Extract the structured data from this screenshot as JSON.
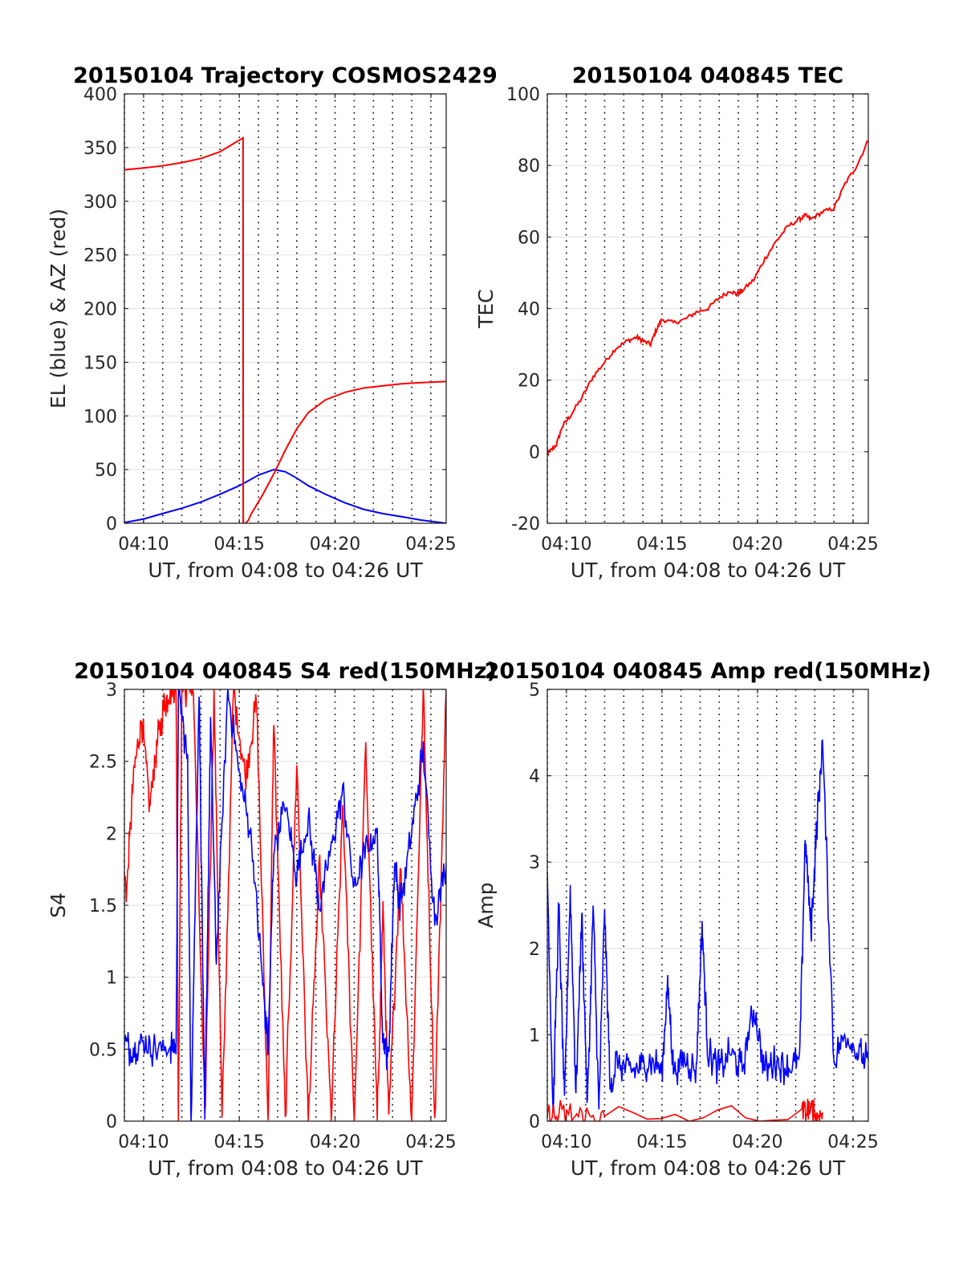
{
  "figure": {
    "background": "#ffffff"
  },
  "chart_data": [
    {
      "type": "line",
      "title": "20150104 Trajectory COSMOS2429",
      "xlabel": "UT, from 04:08 to 04:26 UT",
      "ylabel": "EL (blue) & AZ (red)",
      "xlim": [
        4.15,
        4.43
      ],
      "ylim": [
        0,
        400
      ],
      "x_ticks": [
        {
          "v": 4.1667,
          "label": "04:10"
        },
        {
          "v": 4.25,
          "label": "04:15"
        },
        {
          "v": 4.3333,
          "label": "04:20"
        },
        {
          "v": 4.4167,
          "label": "04:25"
        }
      ],
      "y_ticks": [
        {
          "v": 0,
          "label": "0"
        },
        {
          "v": 50,
          "label": "50"
        },
        {
          "v": 100,
          "label": "100"
        },
        {
          "v": 150,
          "label": "150"
        },
        {
          "v": 200,
          "label": "200"
        },
        {
          "v": 250,
          "label": "250"
        },
        {
          "v": 300,
          "label": "300"
        },
        {
          "v": 350,
          "label": "350"
        },
        {
          "v": 400,
          "label": "400"
        }
      ],
      "grid": "y-solid, x-dotted every minute",
      "series": [
        {
          "color": "#0000ff",
          "x": [
            4.1467,
            4.167,
            4.183,
            4.2,
            4.217,
            4.233,
            4.25,
            4.267,
            4.28,
            4.29,
            4.3,
            4.31,
            4.325,
            4.342,
            4.358,
            4.375,
            4.392,
            4.408,
            4.43
          ],
          "y": [
            0,
            4,
            9,
            14,
            20,
            27,
            35,
            45,
            50,
            48,
            42,
            35,
            27,
            19,
            13,
            9,
            6,
            3,
            0
          ]
        },
        {
          "color": "#ff0000",
          "x": [
            4.1467,
            4.167,
            4.183,
            4.2,
            4.217,
            4.233,
            4.2533,
            4.2534,
            4.2556,
            4.258,
            4.26,
            4.27,
            4.28,
            4.29,
            4.3,
            4.31,
            4.325,
            4.342,
            4.358,
            4.375,
            4.392,
            4.408,
            4.43
          ],
          "y": [
            329,
            331,
            333,
            336,
            340,
            346,
            359,
            0,
            0,
            3,
            8,
            26,
            46,
            68,
            88,
            103,
            115,
            122,
            126,
            128,
            130,
            131,
            132
          ]
        }
      ]
    },
    {
      "type": "line",
      "title": "20150104 040845 TEC",
      "xlabel": "UT, from 04:08 to 04:26 UT",
      "ylabel": "TEC",
      "xlim": [
        4.15,
        4.43
      ],
      "ylim": [
        -20,
        100
      ],
      "x_ticks": [
        {
          "v": 4.1667,
          "label": "04:10"
        },
        {
          "v": 4.25,
          "label": "04:15"
        },
        {
          "v": 4.3333,
          "label": "04:20"
        },
        {
          "v": 4.4167,
          "label": "04:25"
        }
      ],
      "y_ticks": [
        {
          "v": -20,
          "label": "-20"
        },
        {
          "v": 0,
          "label": "0"
        },
        {
          "v": 20,
          "label": "20"
        },
        {
          "v": 40,
          "label": "40"
        },
        {
          "v": 60,
          "label": "60"
        },
        {
          "v": 80,
          "label": "80"
        },
        {
          "v": 100,
          "label": "100"
        }
      ],
      "grid": "y-solid, x-dotted every minute",
      "series": [
        {
          "color": "#ff0000",
          "x": [
            4.1467,
            4.152,
            4.158,
            4.163,
            4.17,
            4.18,
            4.19,
            4.2,
            4.21,
            4.22,
            4.228,
            4.233,
            4.24,
            4.245,
            4.25,
            4.26,
            4.27,
            4.28,
            4.29,
            4.3,
            4.31,
            4.315,
            4.32,
            4.33,
            4.34,
            4.35,
            4.36,
            4.37,
            4.375,
            4.38,
            4.39,
            4.4,
            4.41,
            4.42,
            4.43
          ],
          "y": [
            -1,
            0,
            2,
            7,
            10,
            15,
            21,
            25,
            29,
            31,
            32,
            31,
            30,
            34,
            37,
            36,
            37,
            39,
            40,
            43,
            45,
            44,
            45,
            48,
            54,
            59,
            63,
            65,
            66,
            65,
            67,
            68,
            75,
            80,
            87
          ]
        }
      ]
    },
    {
      "type": "line",
      "title": "20150104 040845 S4 red(150MHz)",
      "xlabel": "UT, from 04:08 to 04:26 UT",
      "ylabel": "S4",
      "xlim": [
        4.15,
        4.43
      ],
      "ylim": [
        0,
        3
      ],
      "x_ticks": [
        {
          "v": 4.1667,
          "label": "04:10"
        },
        {
          "v": 4.25,
          "label": "04:15"
        },
        {
          "v": 4.3333,
          "label": "04:20"
        },
        {
          "v": 4.4167,
          "label": "04:25"
        }
      ],
      "y_ticks": [
        {
          "v": 0,
          "label": "0"
        },
        {
          "v": 0.5,
          "label": "0.5"
        },
        {
          "v": 1,
          "label": "1"
        },
        {
          "v": 1.5,
          "label": "1.5"
        },
        {
          "v": 2,
          "label": "2"
        },
        {
          "v": 2.5,
          "label": "2.5"
        },
        {
          "v": 3,
          "label": "3"
        }
      ],
      "grid": "y-solid, x-dotted every minute",
      "series": [
        {
          "color": "#ff0000",
          "x": [
            4.1467,
            4.152,
            4.158,
            4.165,
            4.172,
            4.178,
            4.185,
            4.19,
            4.195,
            4.197,
            4.2,
            4.21,
            4.22,
            4.228,
            4.235,
            4.245,
            4.255,
            4.265,
            4.275,
            4.28,
            4.29,
            4.3,
            4.31,
            4.32,
            4.33,
            4.34,
            4.35,
            4.36,
            4.37,
            4.375,
            4.38,
            4.39,
            4.4,
            4.41,
            4.42,
            4.43
          ],
          "y": [
            1.9,
            1.6,
            2.4,
            2.8,
            2.2,
            2.6,
            2.9,
            3,
            3,
            0,
            3,
            3,
            0,
            3,
            0,
            3,
            2.4,
            2.9,
            0,
            2.8,
            0,
            2.5,
            0,
            1.8,
            0,
            2.2,
            0,
            2.6,
            0,
            1.5,
            0,
            1.8,
            0,
            3,
            0,
            3
          ]
        },
        {
          "color": "#0000ff",
          "x": [
            4.1467,
            4.155,
            4.165,
            4.175,
            4.19,
            4.195,
            4.197,
            4.205,
            4.208,
            4.215,
            4.22,
            4.225,
            4.23,
            4.24,
            4.25,
            4.26,
            4.27,
            4.275,
            4.28,
            4.29,
            4.3,
            4.31,
            4.32,
            4.33,
            4.34,
            4.35,
            4.36,
            4.37,
            4.375,
            4.38,
            4.385,
            4.39,
            4.4,
            4.41,
            4.42,
            4.43
          ],
          "y": [
            0.58,
            0.5,
            0.55,
            0.5,
            0.52,
            0.5,
            3,
            2.5,
            0,
            3,
            0,
            2.8,
            1.1,
            3,
            2.4,
            2.0,
            1.0,
            0.5,
            1.9,
            2.2,
            1.7,
            2.1,
            1.5,
            1.9,
            2.3,
            1.6,
            1.9,
            2.0,
            0.55,
            0.45,
            1.8,
            1.5,
            2.0,
            2.6,
            1.4,
            1.8
          ]
        }
      ]
    },
    {
      "type": "line",
      "title": "20150104 040845 Amp red(150MHz)",
      "xlabel": "UT, from 04:08 to 04:26 UT",
      "ylabel": "Amp",
      "xlim": [
        4.15,
        4.43
      ],
      "ylim": [
        0,
        5
      ],
      "x_ticks": [
        {
          "v": 4.1667,
          "label": "04:10"
        },
        {
          "v": 4.25,
          "label": "04:15"
        },
        {
          "v": 4.3333,
          "label": "04:20"
        },
        {
          "v": 4.4167,
          "label": "04:25"
        }
      ],
      "y_ticks": [
        {
          "v": 0,
          "label": "0"
        },
        {
          "v": 1,
          "label": "1"
        },
        {
          "v": 2,
          "label": "2"
        },
        {
          "v": 3,
          "label": "3"
        },
        {
          "v": 4,
          "label": "4"
        },
        {
          "v": 5,
          "label": "5"
        }
      ],
      "grid": "y-solid, x-dotted every minute",
      "series": [
        {
          "color": "#0000ff",
          "x": [
            4.1467,
            4.15,
            4.155,
            4.16,
            4.165,
            4.17,
            4.175,
            4.18,
            4.185,
            4.19,
            4.195,
            4.2,
            4.205,
            4.21,
            4.22,
            4.23,
            4.24,
            4.25,
            4.255,
            4.26,
            4.27,
            4.28,
            4.285,
            4.29,
            4.3,
            4.31,
            4.32,
            4.33,
            4.34,
            4.35,
            4.36,
            4.37,
            4.375,
            4.38,
            4.385,
            4.39,
            4.4,
            4.41,
            4.42,
            4.43
          ],
          "y": [
            0,
            2.9,
            0.1,
            2.5,
            0.2,
            2.7,
            0.3,
            2.4,
            0.2,
            2.5,
            0.1,
            2.5,
            0.3,
            0.7,
            0.6,
            0.6,
            0.7,
            0.6,
            1.6,
            0.6,
            0.7,
            0.6,
            2.3,
            0.8,
            0.6,
            0.8,
            0.6,
            1.3,
            0.6,
            0.7,
            0.6,
            0.7,
            3.3,
            2.2,
            3.4,
            4.4,
            0.7,
            1.0,
            0.8,
            0.7
          ]
        },
        {
          "color": "#ff0000",
          "x": [
            4.1467,
            4.16,
            4.18,
            4.2,
            4.372,
            4.38,
            4.385,
            4.39
          ],
          "y": [
            0.02,
            0.05,
            0.05,
            0.03,
            0.06,
            0.12,
            0.05,
            0.1
          ]
        }
      ]
    }
  ]
}
